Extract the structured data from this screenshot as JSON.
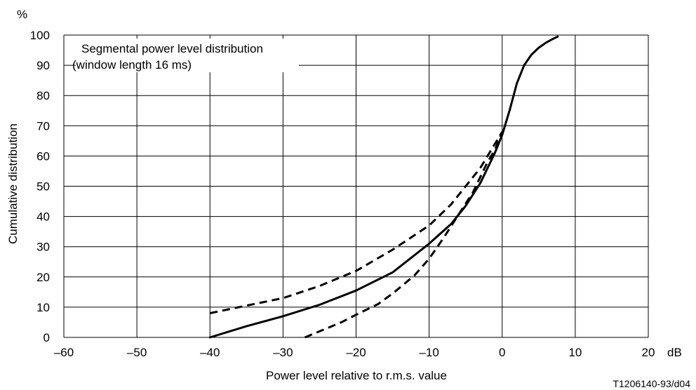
{
  "chart_data": {
    "type": "line",
    "xlabel": "Power level relative to r.m.s. value",
    "ylabel": "Cumulative distribution",
    "x_unit": "dB",
    "y_unit": "%",
    "xlim": [
      -60,
      20
    ],
    "ylim": [
      0,
      100
    ],
    "x_ticks": [
      -60,
      -50,
      -40,
      -30,
      -20,
      -10,
      0,
      10,
      20
    ],
    "y_ticks": [
      0,
      10,
      20,
      30,
      40,
      50,
      60,
      70,
      80,
      90,
      100
    ],
    "x_tick_labels": [
      "–60",
      "–50",
      "–40",
      "–30",
      "–20",
      "–10",
      "0",
      "10",
      "20"
    ],
    "y_tick_labels": [
      "0",
      "10",
      "20",
      "30",
      "40",
      "50",
      "60",
      "70",
      "80",
      "90",
      "100"
    ],
    "grid": true,
    "annotation": [
      "Segmental power level distribution",
      "(window length 16 ms)"
    ],
    "series": [
      {
        "style": "solid",
        "x": [
          -40,
          -35,
          -30,
          -25,
          -20,
          -15,
          -10,
          -7,
          -5,
          -3,
          -1,
          0,
          1,
          2,
          3,
          4,
          5,
          6,
          7,
          7.6
        ],
        "y": [
          0,
          3.7,
          7,
          10.8,
          15.5,
          21.5,
          31,
          37.5,
          43.5,
          51,
          61,
          67,
          75,
          84,
          90,
          93.5,
          95.8,
          97.5,
          98.8,
          99.5
        ]
      },
      {
        "style": "dashed",
        "x": [
          -40,
          -35,
          -30,
          -25,
          -20,
          -15,
          -10,
          -7,
          -5,
          -3,
          -1.5,
          0
        ],
        "y": [
          8,
          10.5,
          13,
          17,
          22,
          29,
          37,
          44,
          50,
          56,
          62,
          68
        ]
      },
      {
        "style": "dashed",
        "x": [
          -27,
          -25,
          -22,
          -20,
          -17,
          -15,
          -12,
          -10,
          -8,
          -6,
          -4,
          -2,
          -1,
          0
        ],
        "y": [
          0,
          2,
          5,
          7.5,
          11,
          14.5,
          20.5,
          26,
          33,
          40.5,
          48,
          58,
          62,
          68
        ]
      }
    ]
  },
  "footer": {
    "figure_id": "T1206140-93/d04"
  }
}
